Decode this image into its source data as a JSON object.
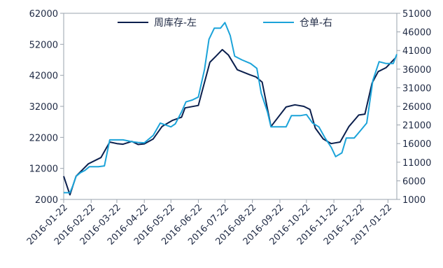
{
  "chart_data": {
    "type": "line",
    "title": "",
    "xlabel": "",
    "ylabel": "",
    "ylabel_right": "",
    "x_tick_labels": [
      "2016-01-22",
      "2016-02-22",
      "2016-03-22",
      "2016-04-22",
      "2016-05-22",
      "2016-06-22",
      "2016-07-22",
      "2016-08-22",
      "2016-09-22",
      "2016-10-22",
      "2016-11-22",
      "2016-12-22",
      "2017-01-22"
    ],
    "x_range": [
      "2016-01-22",
      "2017-02-01"
    ],
    "y_left": {
      "range": [
        2000,
        62000
      ],
      "ticks": [
        2000,
        12000,
        22000,
        32000,
        42000,
        52000,
        62000
      ]
    },
    "y_right": {
      "range": [
        1000,
        51000
      ],
      "ticks": [
        1000,
        6000,
        11000,
        16000,
        21000,
        26000,
        31000,
        36000,
        41000,
        46000,
        51000
      ]
    },
    "grid": false,
    "legend_position": "top",
    "series": [
      {
        "name": "周库存-左",
        "axis": "left",
        "color": "#0b1f4d",
        "points": [
          [
            "2016-01-22",
            9500
          ],
          [
            "2016-01-29",
            3500
          ],
          [
            "2016-02-05",
            9500
          ],
          [
            "2016-02-19",
            13500
          ],
          [
            "2016-03-04",
            15500
          ],
          [
            "2016-03-14",
            20500
          ],
          [
            "2016-03-22",
            20000
          ],
          [
            "2016-03-29",
            19800
          ],
          [
            "2016-04-08",
            20700
          ],
          [
            "2016-04-15",
            19700
          ],
          [
            "2016-04-22",
            19900
          ],
          [
            "2016-05-02",
            21500
          ],
          [
            "2016-05-12",
            25500
          ],
          [
            "2016-05-24",
            27500
          ],
          [
            "2016-06-03",
            28500
          ],
          [
            "2016-06-07",
            31500
          ],
          [
            "2016-06-22",
            32300
          ],
          [
            "2016-07-05",
            46200
          ],
          [
            "2016-07-12",
            48200
          ],
          [
            "2016-07-19",
            50300
          ],
          [
            "2016-07-26",
            48500
          ],
          [
            "2016-08-05",
            43800
          ],
          [
            "2016-08-19",
            42200
          ],
          [
            "2016-08-26",
            41500
          ],
          [
            "2016-09-02",
            39800
          ],
          [
            "2016-09-12",
            25500
          ],
          [
            "2016-09-29",
            31800
          ],
          [
            "2016-10-09",
            32500
          ],
          [
            "2016-10-19",
            32000
          ],
          [
            "2016-10-26",
            31000
          ],
          [
            "2016-11-01",
            25000
          ],
          [
            "2016-11-10",
            21500
          ],
          [
            "2016-11-19",
            20000
          ],
          [
            "2016-11-29",
            20500
          ],
          [
            "2016-12-09",
            25500
          ],
          [
            "2016-12-20",
            29200
          ],
          [
            "2016-12-27",
            29500
          ],
          [
            "2017-01-04",
            39500
          ],
          [
            "2017-01-11",
            43200
          ],
          [
            "2017-01-20",
            44500
          ],
          [
            "2017-01-30",
            47500
          ]
        ]
      },
      {
        "name": "仓单-右",
        "axis": "right",
        "color": "#1ba3d9",
        "points": [
          [
            "2016-01-22",
            2800
          ],
          [
            "2016-01-29",
            2800
          ],
          [
            "2016-02-01",
            4500
          ],
          [
            "2016-02-05",
            7200
          ],
          [
            "2016-02-10",
            8200
          ],
          [
            "2016-02-15",
            8800
          ],
          [
            "2016-02-20",
            9800
          ],
          [
            "2016-03-01",
            9800
          ],
          [
            "2016-03-08",
            10000
          ],
          [
            "2016-03-14",
            17000
          ],
          [
            "2016-03-22",
            17000
          ],
          [
            "2016-03-29",
            17000
          ],
          [
            "2016-04-08",
            16500
          ],
          [
            "2016-04-15",
            16300
          ],
          [
            "2016-04-22",
            16200
          ],
          [
            "2016-05-02",
            18200
          ],
          [
            "2016-05-10",
            21500
          ],
          [
            "2016-05-22",
            20500
          ],
          [
            "2016-05-27",
            21300
          ],
          [
            "2016-06-03",
            24500
          ],
          [
            "2016-06-08",
            27200
          ],
          [
            "2016-06-15",
            27700
          ],
          [
            "2016-06-22",
            28500
          ],
          [
            "2016-06-29",
            36000
          ],
          [
            "2016-07-04",
            44000
          ],
          [
            "2016-07-10",
            47000
          ],
          [
            "2016-07-17",
            47000
          ],
          [
            "2016-07-22",
            48500
          ],
          [
            "2016-07-28",
            45000
          ],
          [
            "2016-08-02",
            39500
          ],
          [
            "2016-08-10",
            38500
          ],
          [
            "2016-08-20",
            37500
          ],
          [
            "2016-08-27",
            36200
          ],
          [
            "2016-09-01",
            29500
          ],
          [
            "2016-09-08",
            24500
          ],
          [
            "2016-09-12",
            20500
          ],
          [
            "2016-09-22",
            20500
          ],
          [
            "2016-09-29",
            20500
          ],
          [
            "2016-10-05",
            23500
          ],
          [
            "2016-10-15",
            23500
          ],
          [
            "2016-10-22",
            23800
          ],
          [
            "2016-10-29",
            21500
          ],
          [
            "2016-11-05",
            20500
          ],
          [
            "2016-11-12",
            17500
          ],
          [
            "2016-11-19",
            15000
          ],
          [
            "2016-11-24",
            12500
          ],
          [
            "2016-12-01",
            13500
          ],
          [
            "2016-12-06",
            17500
          ],
          [
            "2016-12-15",
            17500
          ],
          [
            "2016-12-22",
            19500
          ],
          [
            "2016-12-29",
            21500
          ],
          [
            "2017-01-05",
            33000
          ],
          [
            "2017-01-12",
            38000
          ],
          [
            "2017-01-20",
            37500
          ],
          [
            "2017-01-28",
            37500
          ],
          [
            "2017-02-01",
            40000
          ]
        ]
      }
    ]
  }
}
